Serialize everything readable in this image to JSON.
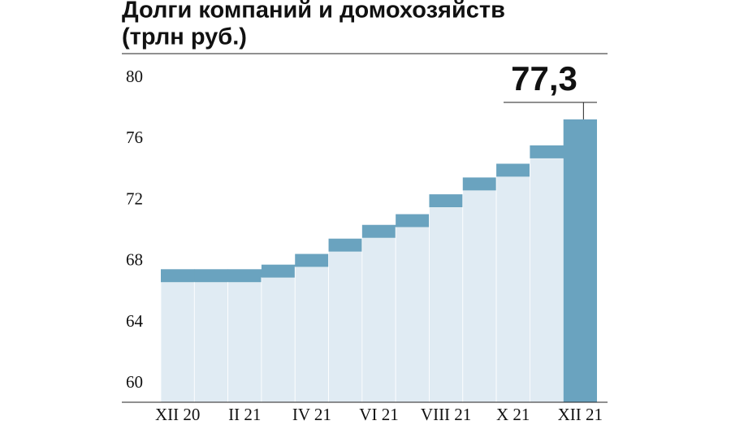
{
  "chart_data": {
    "type": "step",
    "title": "Долги компаний и домохозяйств",
    "subtitle": "(трлн руб.)",
    "categories": [
      "XII 20",
      null,
      "II 21",
      null,
      "IV 21",
      null,
      "VI 21",
      null,
      "VIII 21",
      null,
      "X 21",
      null,
      "XII 21"
    ],
    "values": [
      67.5,
      67.5,
      67.5,
      67.8,
      68.5,
      69.5,
      70.4,
      71.1,
      72.4,
      73.5,
      74.4,
      75.6,
      77.3
    ],
    "value_labels": [
      null,
      null,
      null,
      null,
      null,
      null,
      null,
      null,
      null,
      null,
      null,
      null,
      "77,3"
    ],
    "color": "#6aa3bf",
    "fill_color": "#e0ebf3",
    "ylim": [
      58.8,
      81.6
    ],
    "yticks": [
      60,
      64,
      68,
      72,
      76,
      80
    ]
  }
}
